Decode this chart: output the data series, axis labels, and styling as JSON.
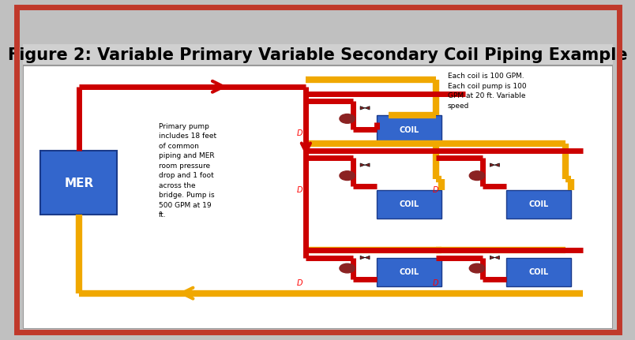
{
  "title": "Figure 2: Variable Primary Variable Secondary Coil Piping Example",
  "title_fontsize": 15,
  "background_outer": "#c0c0c0",
  "background_inner": "#ffffff",
  "border_outer_color": "#c0392b",
  "border_outer_lw": 4,
  "border_inner_color": "#888888",
  "border_inner_lw": 1,
  "title_bg": "#d0d0d0",
  "red_pipe": "#cc0000",
  "gold_pipe": "#f0a800",
  "blue_box": "#3366cc",
  "pump_color": "#8b2222",
  "valve_color": "#8b2222",
  "mer_text": "MER",
  "coil_text": "COIL",
  "annotation_left": "Primary pump\nincludes 18 feet\nof common\npiping and MER\nroom pressure\ndrop and 1 foot\nacross the\nbridge. Pump is\n500 GPM at 19\nft.",
  "annotation_right": "Each coil is 100 GPM.\nEach coil pump is 100\nGPM at 20 ft. Variable\nspeed",
  "pipe_lw": 5,
  "gold_lw": 6
}
